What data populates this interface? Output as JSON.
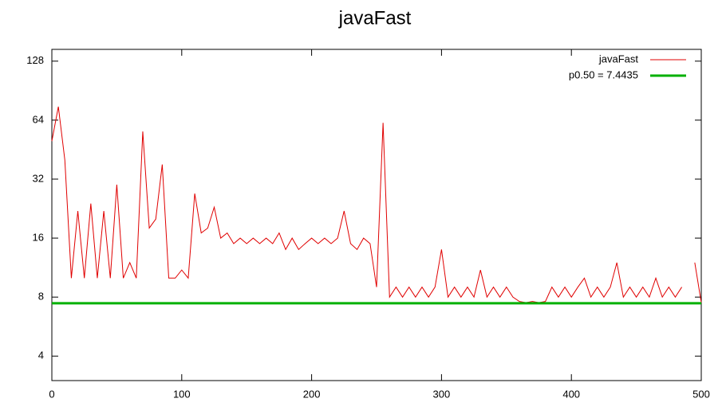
{
  "chart_data": {
    "type": "line",
    "title": "javaFast",
    "x": [
      0,
      5,
      10,
      15,
      20,
      25,
      30,
      35,
      40,
      45,
      50,
      55,
      60,
      65,
      70,
      75,
      80,
      85,
      90,
      95,
      100,
      105,
      110,
      115,
      120,
      125,
      130,
      135,
      140,
      145,
      150,
      155,
      160,
      165,
      170,
      175,
      180,
      185,
      190,
      195,
      200,
      205,
      210,
      215,
      220,
      225,
      230,
      235,
      240,
      245,
      250,
      255,
      260,
      265,
      270,
      275,
      280,
      285,
      290,
      295,
      300,
      305,
      310,
      315,
      320,
      325,
      330,
      335,
      340,
      345,
      350,
      355,
      360,
      365,
      370,
      375,
      380,
      385,
      390,
      395,
      400,
      405,
      410,
      415,
      420,
      425,
      430,
      435,
      440,
      445,
      450,
      455,
      460,
      465,
      470,
      475,
      480,
      485,
      490,
      495,
      500
    ],
    "series": [
      {
        "name": "javaFast",
        "color": "#e00000",
        "values": [
          50,
          75,
          40,
          10,
          22,
          10,
          24,
          10,
          22,
          10,
          30,
          10,
          12,
          10,
          56,
          18,
          20,
          38,
          10,
          10,
          11,
          10,
          27,
          17,
          18,
          23,
          16,
          17,
          15,
          16,
          15,
          16,
          15,
          16,
          15,
          17,
          14,
          16,
          14,
          15,
          16,
          15,
          16,
          15,
          16,
          22,
          15,
          14,
          16,
          15,
          9,
          62,
          8,
          9,
          8,
          9,
          8,
          9,
          8,
          9,
          14,
          8,
          9,
          8,
          9,
          8,
          11,
          8,
          9,
          8,
          9,
          8,
          7.6,
          7.5,
          7.6,
          7.5,
          7.6,
          9,
          8,
          9,
          8,
          9,
          10,
          8,
          9,
          8,
          9,
          12,
          8,
          9,
          8,
          9,
          8,
          10,
          8,
          9,
          8,
          9,
          null,
          12,
          7.5
        ]
      }
    ],
    "hlines": [
      {
        "name": "p0.50 = 7.4435",
        "value": 7.4435,
        "color": "#00b000"
      }
    ],
    "xlim": [
      0,
      500
    ],
    "xticks": [
      0,
      100,
      200,
      300,
      400,
      500
    ],
    "ylim": [
      3,
      147
    ],
    "yticks": [
      4,
      8,
      16,
      32,
      64,
      128
    ],
    "yscale": "log",
    "legend": "top-right"
  }
}
